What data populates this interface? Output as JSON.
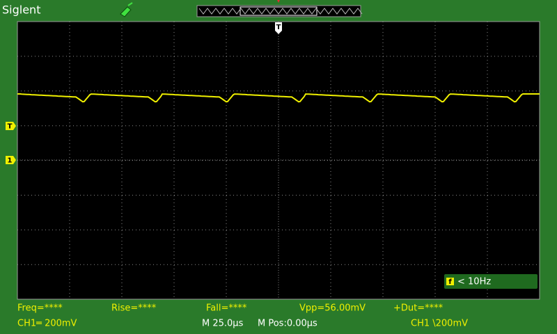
{
  "header": {
    "brand": "Siglent"
  },
  "markers": {
    "trigger_position": "T",
    "trigger_level": "T",
    "channel": "1"
  },
  "measurements": [
    "Freq=****",
    "Rise=****",
    "Fall=****",
    "Vpp=56.00mV",
    "+Dut=****"
  ],
  "status": {
    "channel_scale": "CH1═ 200mV",
    "timebase": "M 25.0µs",
    "position": "M Pos:0.00µs",
    "trigger": "CH1 \\200mV"
  },
  "trigger_frequency": "< 10Hz"
}
